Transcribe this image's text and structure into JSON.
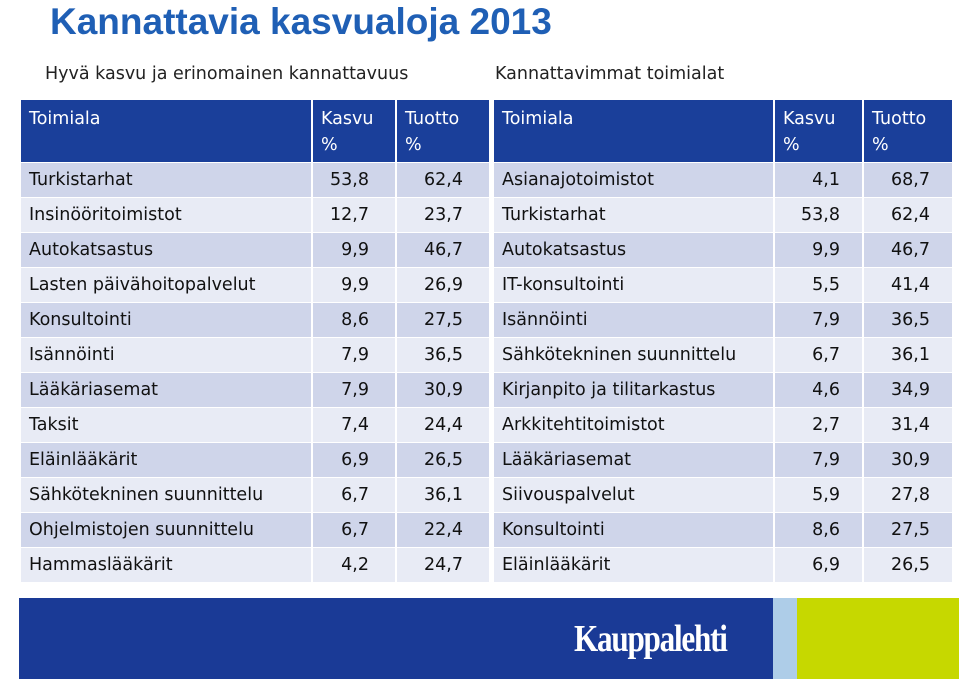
{
  "title": "Kannattavia kasvualoja 2013",
  "left": {
    "subtitle": "Hyvä kasvu ja erinomainen kannattavuus",
    "headers": [
      "Toimiala",
      "Kasvu %",
      "Tuotto %"
    ],
    "rows": [
      [
        "Turkistarhat",
        "53,8",
        "62,4"
      ],
      [
        "Insinööritoimistot",
        "12,7",
        "23,7"
      ],
      [
        "Autokatsastus",
        "9,9",
        "46,7"
      ],
      [
        "Lasten päivähoitopalvelut",
        "9,9",
        "26,9"
      ],
      [
        "Konsultointi",
        "8,6",
        "27,5"
      ],
      [
        "Isännöinti",
        "7,9",
        "36,5"
      ],
      [
        "Lääkäriasemat",
        "7,9",
        "30,9"
      ],
      [
        "Taksit",
        "7,4",
        "24,4"
      ],
      [
        "Eläinlääkärit",
        "6,9",
        "26,5"
      ],
      [
        "Sähkötekninen suunnittelu",
        "6,7",
        "36,1"
      ],
      [
        "Ohjelmistojen suunnittelu",
        "6,7",
        "22,4"
      ],
      [
        "Hammaslääkärit",
        "4,2",
        "24,7"
      ]
    ]
  },
  "right": {
    "subtitle": "Kannattavimmat toimialat",
    "headers": [
      "Toimiala",
      "Kasvu %",
      "Tuotto %"
    ],
    "rows": [
      [
        "Asianajotoimistot",
        "4,1",
        "68,7"
      ],
      [
        "Turkistarhat",
        "53,8",
        "62,4"
      ],
      [
        "Autokatsastus",
        "9,9",
        "46,7"
      ],
      [
        "IT-konsultointi",
        "5,5",
        "41,4"
      ],
      [
        "Isännöinti",
        "7,9",
        "36,5"
      ],
      [
        "Sähkötekninen suunnittelu",
        "6,7",
        "36,1"
      ],
      [
        "Kirjanpito ja tilitarkastus",
        "4,6",
        "34,9"
      ],
      [
        "Arkkitehtitoimistot",
        "2,7",
        "31,4"
      ],
      [
        "Lääkäriasemat",
        "7,9",
        "30,9"
      ],
      [
        "Siivouspalvelut",
        "5,9",
        "27,8"
      ],
      [
        "Konsultointi",
        "8,6",
        "27,5"
      ],
      [
        "Eläinlääkärit",
        "6,9",
        "26,5"
      ]
    ]
  },
  "footer": {
    "logo_text": "Kauppalehti",
    "colors": {
      "bar": "#1a3a96",
      "light": "#aecde8",
      "green": "#c6d800"
    }
  }
}
